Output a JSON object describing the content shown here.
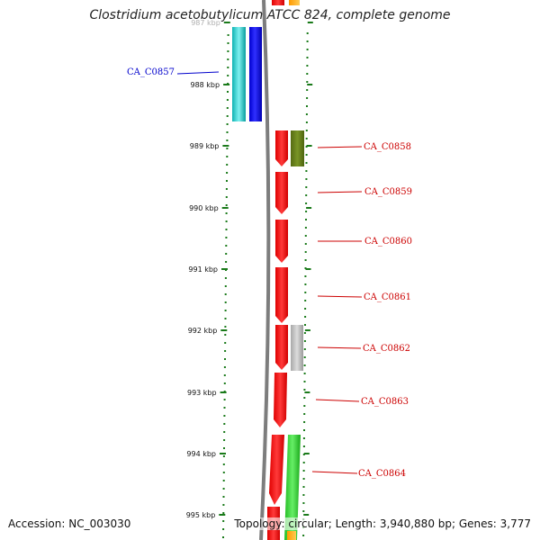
{
  "title": "Clostridium acetobutylicum ATCC 824, complete genome",
  "accession": "Accession: NC_003030",
  "stats": "Topology: circular; Length: 3,940,880 bp; Genes: 3,777",
  "colors": {
    "tick": "#1a7a1a",
    "backbone": "#7d7d7d",
    "label_red": "#cc0000",
    "label_blue": "#0000cc"
  },
  "ticks": [
    {
      "label": "987 kbp"
    },
    {
      "label": "988 kbp"
    },
    {
      "label": "989 kbp"
    },
    {
      "label": "990 kbp"
    },
    {
      "label": "991 kbp"
    },
    {
      "label": "992 kbp"
    },
    {
      "label": "993 kbp"
    },
    {
      "label": "994 kbp"
    },
    {
      "label": "995 kbp"
    }
  ],
  "genes": [
    {
      "name": "CA_C0857",
      "color": "#0000cc"
    },
    {
      "name": "CA_C0858",
      "color": "#cc0000"
    },
    {
      "name": "CA_C0859",
      "color": "#cc0000"
    },
    {
      "name": "CA_C0860",
      "color": "#cc0000"
    },
    {
      "name": "CA_C0861",
      "color": "#cc0000"
    },
    {
      "name": "CA_C0862",
      "color": "#cc0000"
    },
    {
      "name": "CA_C0863",
      "color": "#cc0000"
    },
    {
      "name": "CA_C0864",
      "color": "#cc0000"
    }
  ]
}
